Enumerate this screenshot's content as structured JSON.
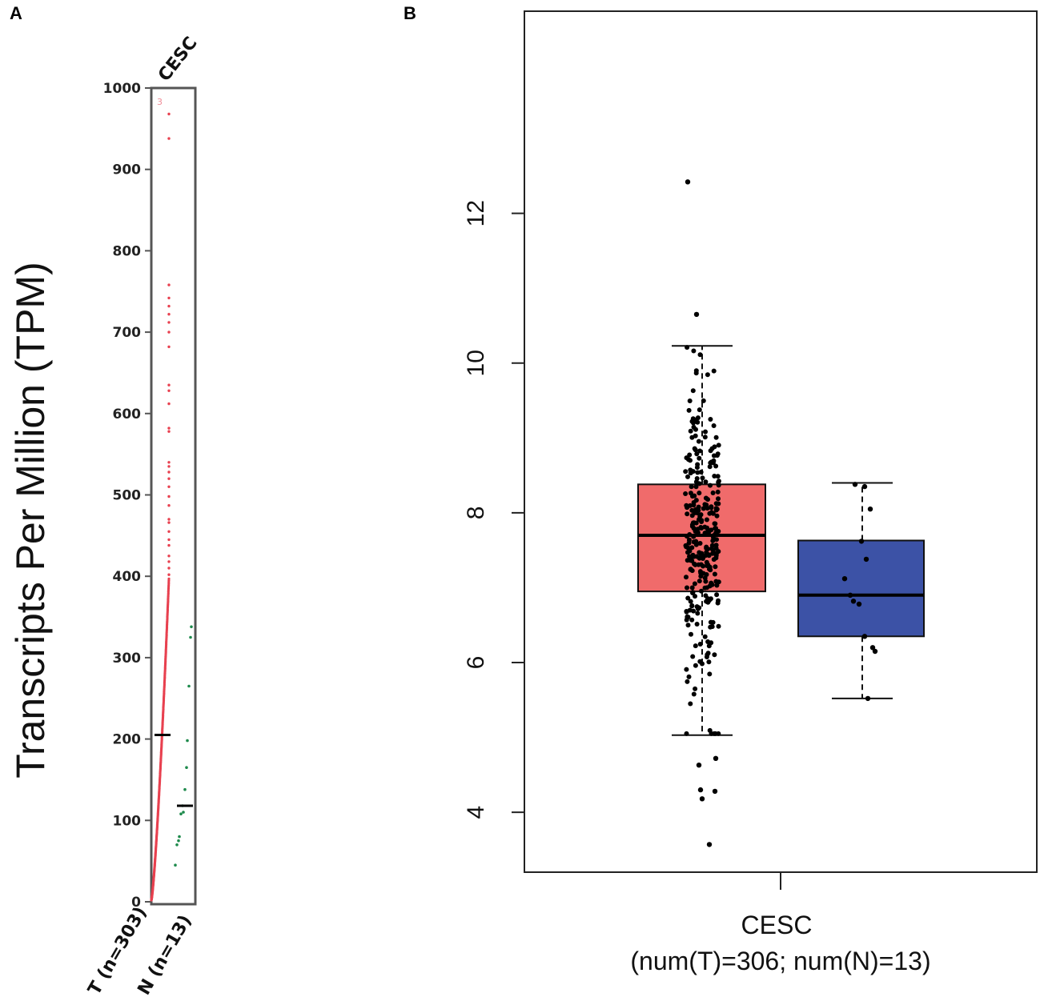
{
  "panels": {
    "a": {
      "letter": "A"
    },
    "b": {
      "letter": "B"
    }
  },
  "colors": {
    "tumor_dot": "#e8404f",
    "normal_dot": "#1e8a4c",
    "box_tumor": "#f06b6b",
    "box_normal": "#3c52a6",
    "axis": "#333333"
  },
  "chart_data": [
    {
      "id": "panel-a",
      "type": "scatter",
      "title": "CESC",
      "ylabel": "Transcripts Per Million (TPM)",
      "ylim": [
        0,
        1000
      ],
      "yticks": [
        "0",
        "100",
        "200",
        "300",
        "400",
        "500",
        "600",
        "700",
        "800",
        "900",
        "1000"
      ],
      "categories": [
        "T (n=303)",
        "N (n=13)"
      ],
      "offscale_note": "3",
      "series": [
        {
          "name": "T (n=303)",
          "color": "#e8404f",
          "median": 205,
          "extreme_values": [
            968,
            938,
            758,
            742,
            732,
            722,
            712,
            700,
            682,
            635,
            628,
            612,
            582,
            578,
            540,
            535,
            528,
            520,
            510,
            498,
            487,
            470,
            466,
            455,
            445,
            438,
            425,
            418,
            410,
            402
          ]
        },
        {
          "name": "N (n=13)",
          "color": "#1e8a4c",
          "median": 118,
          "values": [
            338,
            325,
            265,
            198,
            165,
            138,
            118,
            110,
            108,
            80,
            75,
            70,
            45
          ]
        }
      ]
    },
    {
      "id": "panel-b",
      "type": "box",
      "xlabel_line1": "CESC",
      "xlabel_line2": "(num(T)=306; num(N)=13)",
      "ylim": [
        3.2,
        14.7
      ],
      "yticks": [
        "4",
        "6",
        "8",
        "10",
        "12"
      ],
      "series": [
        {
          "name": "T",
          "n": 306,
          "color": "#f06b6b",
          "whisker_low": 5.03,
          "q1": 6.95,
          "median": 7.7,
          "q3": 8.38,
          "whisker_high": 10.23,
          "outliers": [
            12.42,
            10.65,
            4.72,
            4.63,
            4.3,
            4.28,
            4.18,
            3.57
          ]
        },
        {
          "name": "N",
          "n": 13,
          "color": "#3c52a6",
          "whisker_low": 5.52,
          "q1": 6.35,
          "median": 6.9,
          "q3": 7.63,
          "whisker_high": 8.4,
          "points": [
            8.38,
            8.35,
            8.05,
            7.62,
            7.38,
            7.12,
            6.82,
            6.78,
            6.35,
            6.2,
            6.15,
            5.52,
            6.9
          ]
        }
      ]
    }
  ]
}
